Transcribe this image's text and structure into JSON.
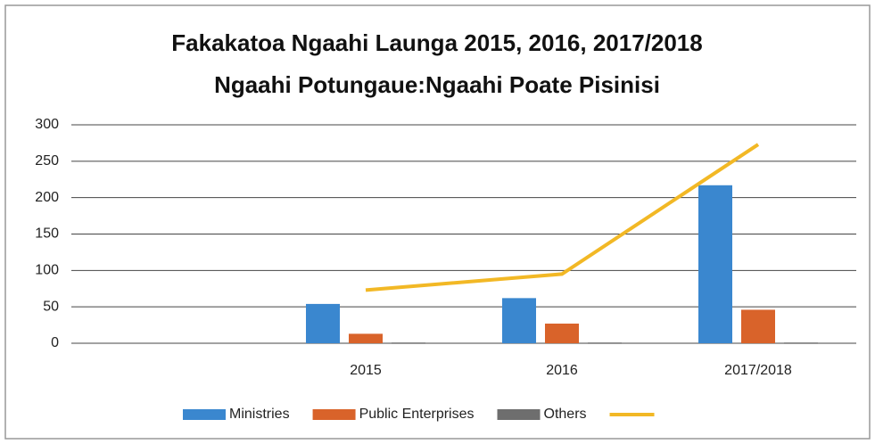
{
  "chart_data": {
    "type": "bar",
    "title": [
      "Fakakatoa Ngaahi Launga 2015, 2016, 2017/2018",
      "Ngaahi Potungaue:Ngaahi Poate Pisinisi"
    ],
    "categories": [
      null,
      "2015",
      "2016",
      "2017/2018"
    ],
    "series": [
      {
        "name": "Ministries",
        "color": "#3a87cf",
        "values": [
          null,
          54,
          62,
          217
        ]
      },
      {
        "name": "Public Enterprises",
        "color": "#d9632a",
        "values": [
          null,
          13,
          27,
          46
        ]
      },
      {
        "name": "Others",
        "color": "#6e6e6e",
        "values": [
          null,
          1,
          1,
          1
        ]
      },
      {
        "type": "line",
        "color": "#f2b825",
        "values": [
          null,
          73,
          95,
          273
        ]
      }
    ],
    "ylim": [
      0,
      300
    ],
    "yticks": [
      0,
      50,
      100,
      150,
      200,
      250,
      300
    ],
    "grid": true,
    "legend": "bottom"
  }
}
